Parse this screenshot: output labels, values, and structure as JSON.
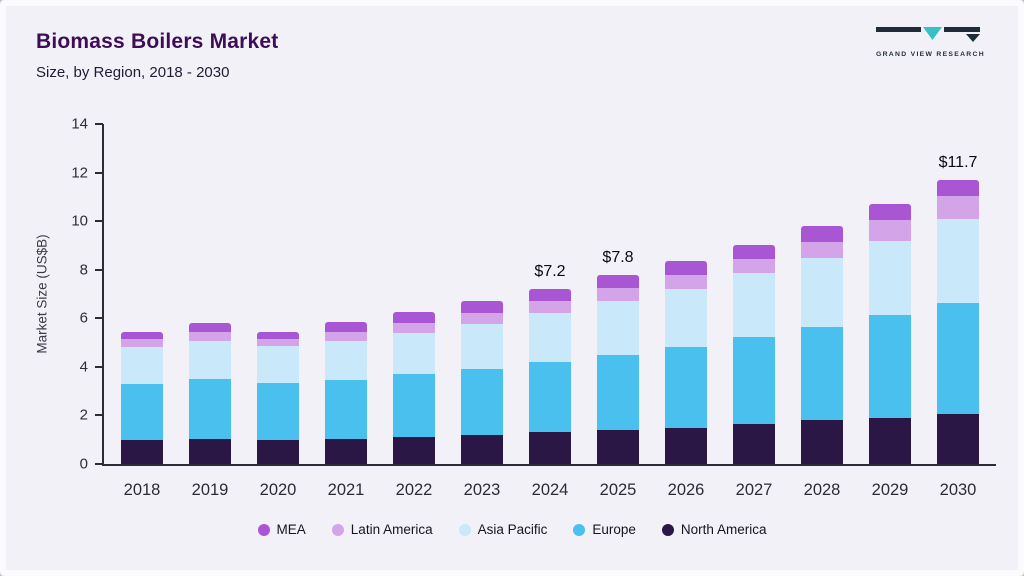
{
  "header": {
    "title": "Biomass Boilers Market",
    "subtitle": "Size, by Region, 2018 - 2030",
    "logo_text": "GRAND VIEW RESEARCH"
  },
  "chart_data": {
    "type": "bar",
    "stacked": true,
    "title": "Biomass Boilers Market Size, by Region, 2018 - 2030",
    "xlabel": "",
    "ylabel": "Market Size (US$B)",
    "ylim": [
      0,
      14
    ],
    "yticks": [
      0,
      2,
      4,
      6,
      8,
      10,
      12,
      14
    ],
    "grid": false,
    "legend_position": "bottom",
    "categories": [
      "2018",
      "2019",
      "2020",
      "2021",
      "2022",
      "2023",
      "2024",
      "2025",
      "2026",
      "2027",
      "2028",
      "2029",
      "2030"
    ],
    "series": [
      {
        "name": "North America",
        "color": "#2a1745",
        "values": [
          1.0,
          1.05,
          1.0,
          1.05,
          1.1,
          1.2,
          1.3,
          1.4,
          1.5,
          1.65,
          1.8,
          1.9,
          2.05
        ]
      },
      {
        "name": "Europe",
        "color": "#49c0ee",
        "values": [
          2.3,
          2.45,
          2.35,
          2.4,
          2.6,
          2.7,
          2.9,
          3.1,
          3.3,
          3.6,
          3.85,
          4.25,
          4.6
        ]
      },
      {
        "name": "Asia Pacific",
        "color": "#c9e9fa",
        "values": [
          1.5,
          1.55,
          1.5,
          1.6,
          1.7,
          1.85,
          2.0,
          2.2,
          2.4,
          2.6,
          2.85,
          3.05,
          3.45
        ]
      },
      {
        "name": "Latin America",
        "color": "#d4a4e8",
        "values": [
          0.35,
          0.4,
          0.3,
          0.4,
          0.4,
          0.45,
          0.5,
          0.55,
          0.6,
          0.6,
          0.65,
          0.85,
          0.95
        ]
      },
      {
        "name": "MEA",
        "color": "#a856d4",
        "values": [
          0.3,
          0.35,
          0.3,
          0.4,
          0.45,
          0.5,
          0.5,
          0.55,
          0.55,
          0.55,
          0.65,
          0.65,
          0.65
        ]
      }
    ],
    "totals": [
      5.45,
      5.8,
      5.45,
      5.85,
      6.25,
      6.7,
      7.2,
      7.8,
      8.35,
      9.0,
      9.8,
      10.7,
      11.7
    ],
    "annotations": [
      {
        "category": "2024",
        "text": "$7.2"
      },
      {
        "category": "2025",
        "text": "$7.8"
      },
      {
        "category": "2030",
        "text": "$11.7"
      }
    ],
    "legend_order": [
      "MEA",
      "Latin America",
      "Asia Pacific",
      "Europe",
      "North America"
    ],
    "logo_colors": {
      "dark": "#1f2d3a",
      "teal": "#35c2c6"
    }
  }
}
